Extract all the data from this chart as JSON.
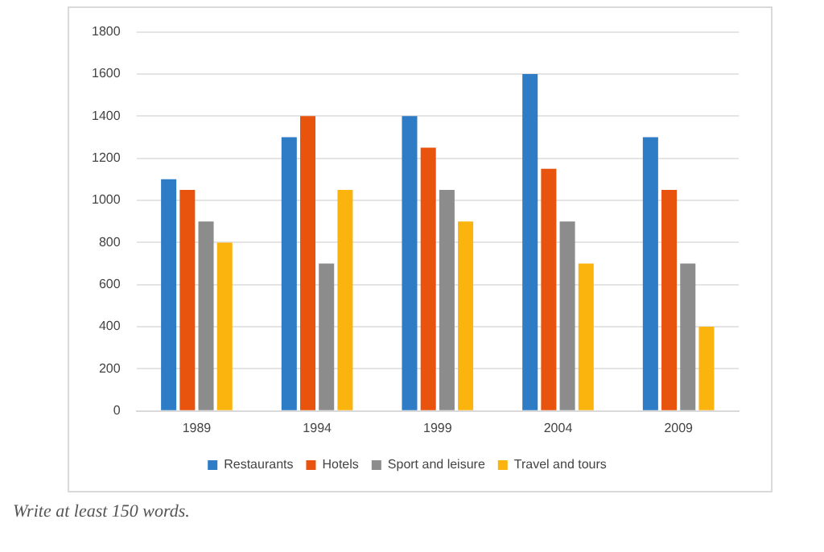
{
  "chart_data": {
    "type": "bar",
    "categories": [
      "1989",
      "1994",
      "1999",
      "2004",
      "2009"
    ],
    "series": [
      {
        "name": "Restaurants",
        "color": "#2e7bc6",
        "values": [
          1100,
          1300,
          1400,
          1600,
          1300
        ]
      },
      {
        "name": "Hotels",
        "color": "#e8540e",
        "values": [
          1050,
          1400,
          1250,
          1150,
          1050
        ]
      },
      {
        "name": "Sport and leisure",
        "color": "#8c8c8c",
        "values": [
          900,
          700,
          1050,
          900,
          700
        ]
      },
      {
        "name": "Travel and tours",
        "color": "#fbb30e",
        "values": [
          800,
          1050,
          900,
          700,
          400
        ]
      }
    ],
    "ylim": [
      0,
      1800
    ],
    "yticks": [
      0,
      200,
      400,
      600,
      800,
      1000,
      1200,
      1400,
      1600,
      1800
    ],
    "grid": "y",
    "legend": "bottom",
    "annotations": [
      "Write at least 150 words."
    ]
  }
}
